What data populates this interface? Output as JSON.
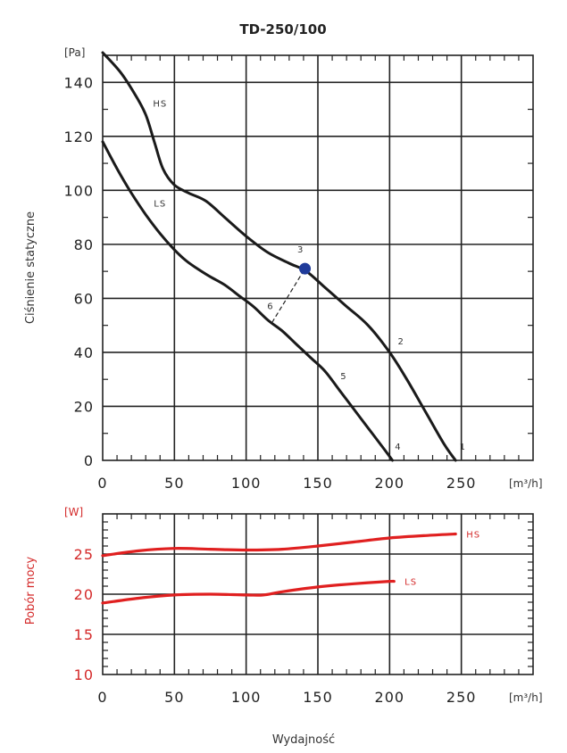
{
  "chart_data": [
    {
      "type": "line",
      "title": "TD-250/100",
      "ylabel": "Ciśnienie statyczne",
      "yunit": "[Pa]",
      "xunit": "[m³/h]",
      "xlim": [
        0,
        300
      ],
      "ylim": [
        0,
        150
      ],
      "xticks": [
        0,
        50,
        100,
        150,
        200,
        250
      ],
      "yticks": [
        0,
        20,
        40,
        60,
        80,
        100,
        120,
        140
      ],
      "series": [
        {
          "name": "HS",
          "points": [
            [
              0,
              151
            ],
            [
              12,
              144
            ],
            [
              22,
              136
            ],
            [
              30,
              128
            ],
            [
              36,
              118
            ],
            [
              42,
              108
            ],
            [
              50,
              102
            ],
            [
              60,
              99
            ],
            [
              72,
              96
            ],
            [
              85,
              90
            ],
            [
              100,
              83
            ],
            [
              115,
              77
            ],
            [
              130,
              73
            ],
            [
              142,
              70
            ],
            [
              155,
              64
            ],
            [
              170,
              57
            ],
            [
              185,
              50
            ],
            [
              200,
              40
            ],
            [
              212,
              30
            ],
            [
              225,
              18
            ],
            [
              238,
              6
            ],
            [
              246,
              0
            ]
          ]
        },
        {
          "name": "LS",
          "points": [
            [
              0,
              118
            ],
            [
              10,
              108
            ],
            [
              20,
              99
            ],
            [
              30,
              91
            ],
            [
              40,
              84
            ],
            [
              50,
              78
            ],
            [
              58,
              74
            ],
            [
              66,
              71
            ],
            [
              75,
              68
            ],
            [
              85,
              65
            ],
            [
              95,
              61
            ],
            [
              105,
              57
            ],
            [
              115,
              52
            ],
            [
              125,
              48
            ],
            [
              135,
              43
            ],
            [
              145,
              38
            ],
            [
              155,
              33
            ],
            [
              165,
              26
            ],
            [
              175,
              19
            ],
            [
              185,
              12
            ],
            [
              195,
              5
            ],
            [
              202,
              0
            ]
          ]
        }
      ],
      "operating_point": {
        "label": "3",
        "x": 141,
        "y": 71
      },
      "point_labels": [
        {
          "text": "HS",
          "x": 40,
          "y": 131
        },
        {
          "text": "LS",
          "x": 40,
          "y": 94
        },
        {
          "text": "3",
          "x": 138,
          "y": 77
        },
        {
          "text": "2",
          "x": 208,
          "y": 43
        },
        {
          "text": "1",
          "x": 251,
          "y": 4
        },
        {
          "text": "4",
          "x": 206,
          "y": 4
        },
        {
          "text": "5",
          "x": 168,
          "y": 30
        },
        {
          "text": "6",
          "x": 117,
          "y": 56
        }
      ],
      "dashed_line": [
        [
          118,
          51
        ],
        [
          141,
          71
        ]
      ]
    },
    {
      "type": "line",
      "ylabel": "Pobór mocy",
      "yunit": "[W]",
      "xunit": "[m³/h]",
      "xlabel": "Wydajność",
      "xlim": [
        0,
        300
      ],
      "ylim": [
        10,
        30
      ],
      "xticks": [
        0,
        50,
        100,
        150,
        200,
        250
      ],
      "yticks": [
        10,
        15,
        20,
        25
      ],
      "series": [
        {
          "name": "HS",
          "points": [
            [
              0,
              24.8
            ],
            [
              25,
              25.4
            ],
            [
              50,
              25.7
            ],
            [
              75,
              25.6
            ],
            [
              100,
              25.5
            ],
            [
              125,
              25.6
            ],
            [
              150,
              26.0
            ],
            [
              175,
              26.5
            ],
            [
              200,
              27.0
            ],
            [
              225,
              27.3
            ],
            [
              246,
              27.5
            ]
          ]
        },
        {
          "name": "LS",
          "points": [
            [
              0,
              18.9
            ],
            [
              25,
              19.5
            ],
            [
              50,
              19.9
            ],
            [
              75,
              20.0
            ],
            [
              100,
              19.9
            ],
            [
              112,
              19.9
            ],
            [
              125,
              20.3
            ],
            [
              150,
              20.9
            ],
            [
              175,
              21.3
            ],
            [
              200,
              21.6
            ],
            [
              203,
              21.6
            ]
          ]
        }
      ]
    }
  ],
  "labels": {
    "top_xticks": [
      "0",
      "50",
      "100",
      "150",
      "200",
      "250"
    ],
    "top_yticks": [
      "0",
      "20",
      "40",
      "60",
      "80",
      "100",
      "120",
      "140"
    ],
    "bottom_xticks": [
      "0",
      "50",
      "100",
      "150",
      "200",
      "250"
    ],
    "bottom_yticks": [
      "10",
      "15",
      "20",
      "25"
    ]
  },
  "colors": {
    "pressure_curve": "#1a1a1a",
    "power_curve": "#e02020",
    "power_text": "#d42a2a",
    "operating_point": "#1f3b9a"
  }
}
